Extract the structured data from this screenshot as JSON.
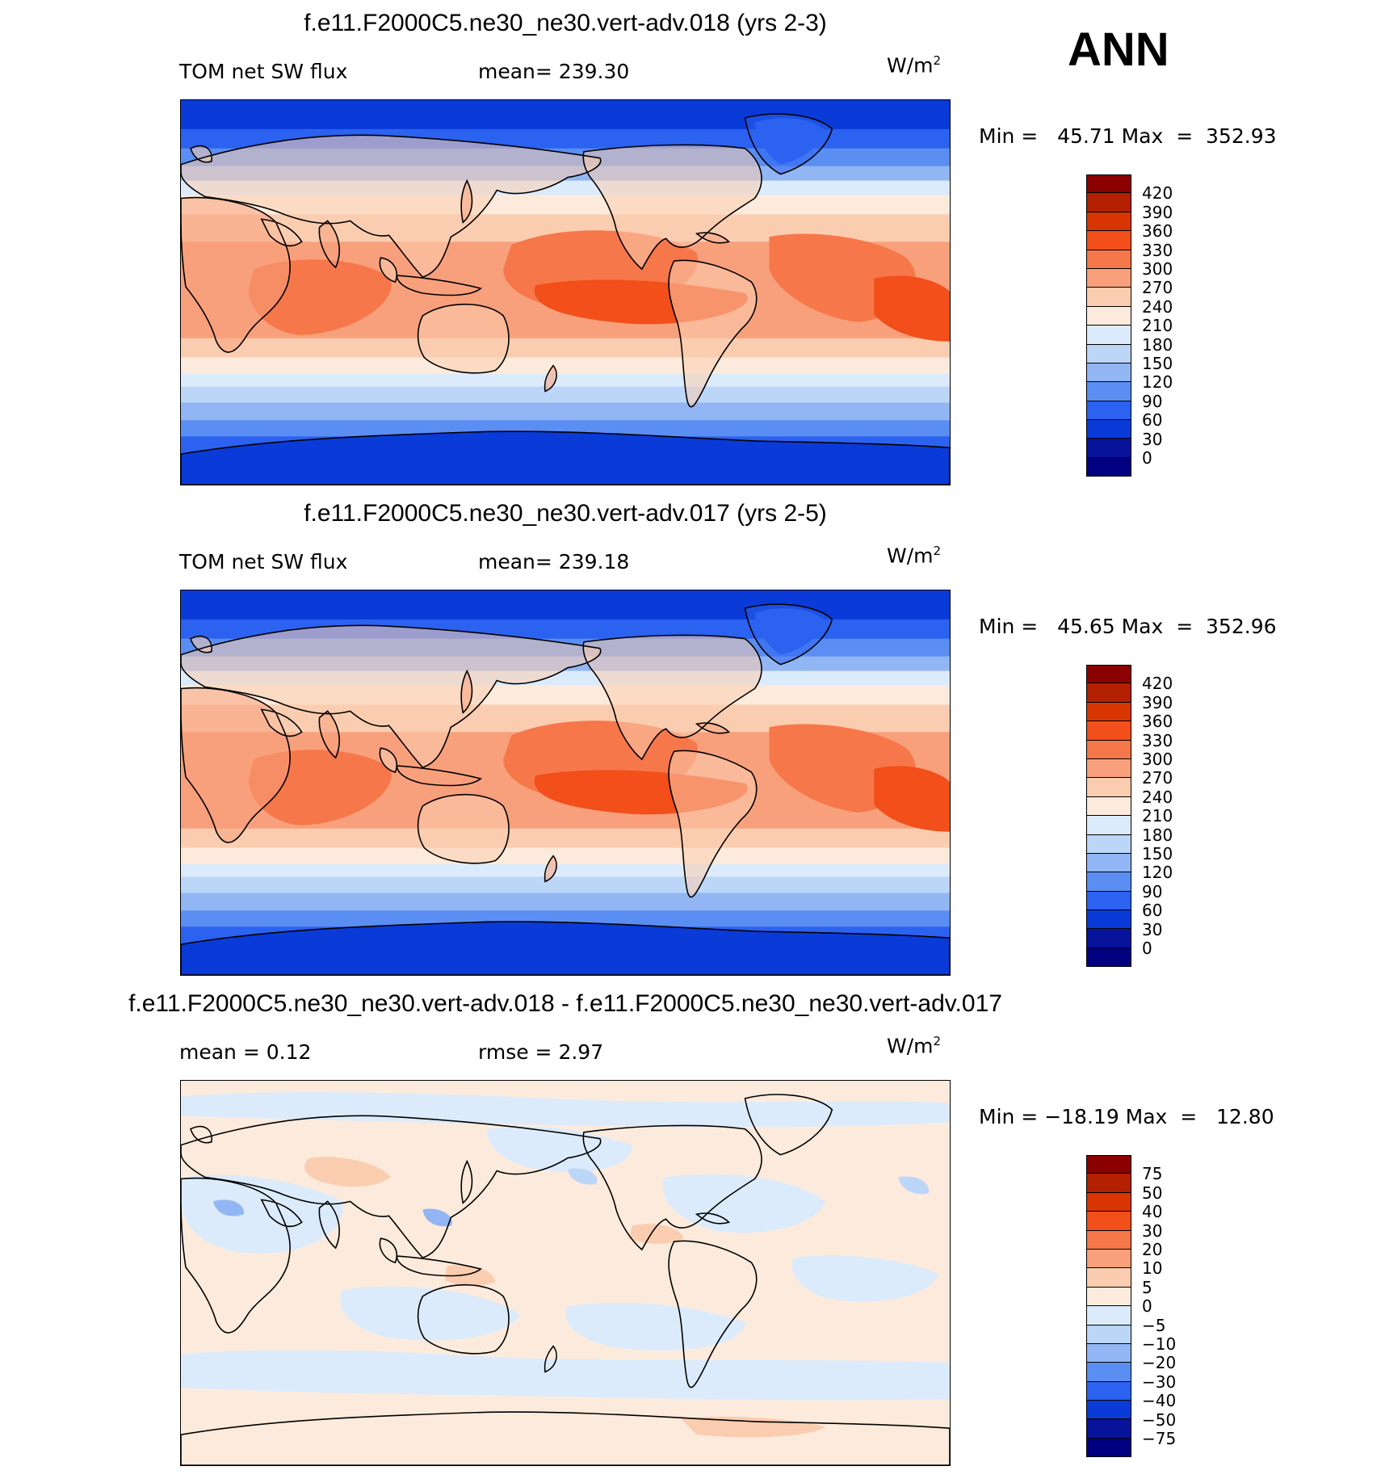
{
  "season": "ANN",
  "units": {
    "base": "W/m",
    "sup": "2"
  },
  "panels": [
    {
      "id": "p1",
      "title": "f.e11.F2000C5.ne30_ne30.vert-adv.018 (yrs 2-3)",
      "left_label": "TOM net SW flux",
      "mid_label": "mean= 239.30",
      "minmax": "Min =   45.71 Max  =  352.93",
      "type": "abs",
      "levels": [
        "420",
        "390",
        "360",
        "330",
        "300",
        "270",
        "240",
        "210",
        "180",
        "150",
        "120",
        "90",
        "60",
        "30",
        "0"
      ]
    },
    {
      "id": "p2",
      "title": "f.e11.F2000C5.ne30_ne30.vert-adv.017 (yrs 2-5)",
      "left_label": "TOM net SW flux",
      "mid_label": "mean= 239.18",
      "minmax": "Min =   45.65 Max  =  352.96",
      "type": "abs",
      "levels": [
        "420",
        "390",
        "360",
        "330",
        "300",
        "270",
        "240",
        "210",
        "180",
        "150",
        "120",
        "90",
        "60",
        "30",
        "0"
      ]
    },
    {
      "id": "p3",
      "title": "f.e11.F2000C5.ne30_ne30.vert-adv.018 - f.e11.F2000C5.ne30_ne30.vert-adv.017",
      "left_label": "mean =     0.12",
      "mid_label": "rmse =     2.97",
      "minmax": "Min = −18.19 Max  =   12.80",
      "type": "diff",
      "levels": [
        "75",
        "50",
        "40",
        "30",
        "20",
        "10",
        "5",
        "0",
        "−5",
        "−10",
        "−20",
        "−30",
        "−40",
        "−50",
        "−75"
      ]
    }
  ],
  "colors": {
    "cbar": [
      "#8b0000",
      "#b22000",
      "#d93500",
      "#f24f1a",
      "#f6774a",
      "#f8a07c",
      "#fbcdb0",
      "#fcebdc",
      "#dcebfb",
      "#bcd6f8",
      "#92b6f4",
      "#5a8ef2",
      "#2c62f0",
      "#0a3bd8",
      "#07139a",
      "#000080"
    ],
    "coast": "#000000"
  }
}
